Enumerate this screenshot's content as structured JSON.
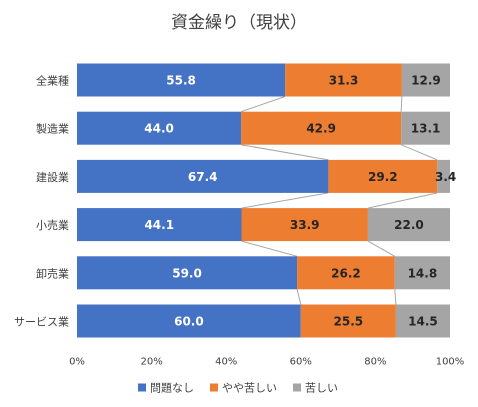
{
  "chart_data": {
    "type": "bar",
    "orientation": "horizontal",
    "stacked": "100%",
    "title": "資金繰り（現状）",
    "categories": [
      "全業種",
      "製造業",
      "建設業",
      "小売業",
      "卸売業",
      "サービス業"
    ],
    "series": [
      {
        "name": "問題なし",
        "color": "#4472C4",
        "values": [
          55.8,
          44.0,
          67.4,
          44.1,
          59.0,
          60.0
        ],
        "labels": [
          "55.8",
          "44.0",
          "67.4",
          "44.1",
          "59.0",
          "60.0"
        ]
      },
      {
        "name": "やや苦しい",
        "color": "#ED7D31",
        "values": [
          31.3,
          42.9,
          29.2,
          33.9,
          26.2,
          25.5
        ],
        "labels": [
          "31.3",
          "42.9",
          "29.2",
          "33.9",
          "26.2",
          "25.5"
        ]
      },
      {
        "name": "苦しい",
        "color": "#A5A5A5",
        "values": [
          12.9,
          13.1,
          3.4,
          22.0,
          14.8,
          14.5
        ],
        "labels": [
          "12.9",
          "13.1",
          "3.4",
          "22.0",
          "14.8",
          "14.5"
        ]
      }
    ],
    "x_ticks": [
      "0%",
      "20%",
      "40%",
      "60%",
      "80%",
      "100%"
    ],
    "xlim": [
      0,
      100
    ],
    "series_lines": true,
    "legend_position": "bottom",
    "grid": false
  }
}
